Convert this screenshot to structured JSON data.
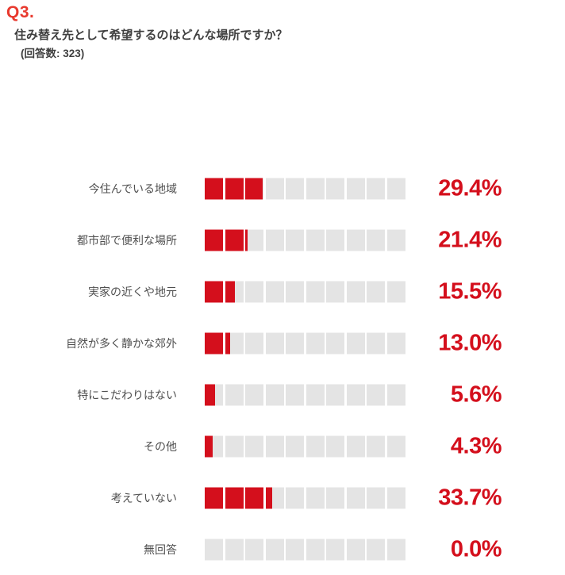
{
  "header": {
    "question_number": "Q3.",
    "question_text": "住み替え先として希望するのはどんな場所ですか？",
    "response_count_label": "(回答数: 323)",
    "response_count": 323
  },
  "chart_data": {
    "type": "bar",
    "orientation": "horizontal",
    "unit": "%",
    "segments_per_bar": 10,
    "segment_value": 10,
    "xlim": [
      0,
      100
    ],
    "categories": [
      "今住んでいる地域",
      "都市部で便利な場所",
      "実家の近くや地元",
      "自然が多く静かな郊外",
      "特にこだわりはない",
      "その他",
      "考えていない",
      "無回答"
    ],
    "values": [
      29.4,
      21.4,
      15.5,
      13.0,
      5.6,
      4.3,
      33.7,
      0.0
    ],
    "value_labels": [
      "29.4%",
      "21.4%",
      "15.5%",
      "13.0%",
      "5.6%",
      "4.3%",
      "33.7%",
      "0.0%"
    ],
    "legend": [],
    "grid": false
  },
  "colors": {
    "question_red": "#e8392e",
    "bar_red": "#d40f1c",
    "track_gray": "#e4e4e4",
    "label_gray": "#4f4f4f",
    "text_dark": "#3f3f3f"
  }
}
